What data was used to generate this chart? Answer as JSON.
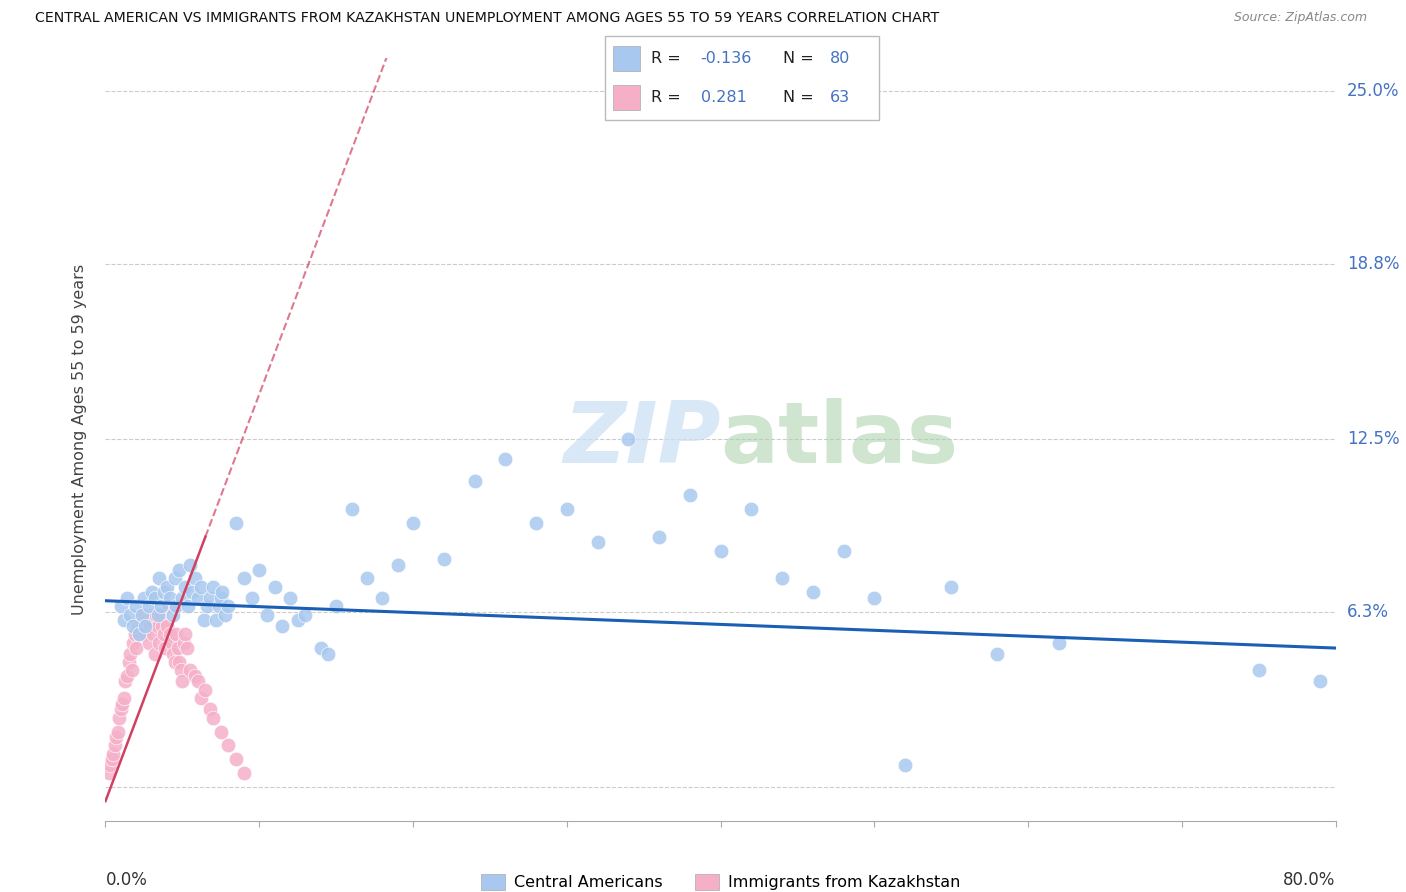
{
  "title": "CENTRAL AMERICAN VS IMMIGRANTS FROM KAZAKHSTAN UNEMPLOYMENT AMONG AGES 55 TO 59 YEARS CORRELATION CHART",
  "source": "Source: ZipAtlas.com",
  "ylabel": "Unemployment Among Ages 55 to 59 years",
  "xmin": 0.0,
  "xmax": 0.8,
  "ymin": -0.012,
  "ymax": 0.262,
  "ytick_positions": [
    0.0,
    0.063,
    0.125,
    0.188,
    0.25
  ],
  "ytick_labels": [
    "",
    "6.3%",
    "12.5%",
    "18.8%",
    "25.0%"
  ],
  "blue_color": "#a8c8ef",
  "pink_color": "#f5b0c8",
  "trend_blue_color": "#1a5fb4",
  "trend_pink_color": "#d04060",
  "watermark_color": "#d8eaf8",
  "title_color": "#111111",
  "right_axis_color": "#4472C4",
  "blue_x": [
    0.01,
    0.012,
    0.014,
    0.016,
    0.018,
    0.02,
    0.022,
    0.024,
    0.025,
    0.026,
    0.028,
    0.03,
    0.032,
    0.034,
    0.035,
    0.036,
    0.038,
    0.04,
    0.042,
    0.044,
    0.045,
    0.046,
    0.048,
    0.05,
    0.052,
    0.054,
    0.055,
    0.056,
    0.058,
    0.06,
    0.062,
    0.064,
    0.066,
    0.068,
    0.07,
    0.072,
    0.074,
    0.075,
    0.076,
    0.078,
    0.08,
    0.085,
    0.09,
    0.095,
    0.1,
    0.105,
    0.11,
    0.115,
    0.12,
    0.125,
    0.13,
    0.14,
    0.145,
    0.15,
    0.16,
    0.17,
    0.18,
    0.19,
    0.2,
    0.22,
    0.24,
    0.26,
    0.28,
    0.3,
    0.32,
    0.34,
    0.36,
    0.38,
    0.4,
    0.42,
    0.44,
    0.46,
    0.48,
    0.5,
    0.52,
    0.55,
    0.58,
    0.62,
    0.75,
    0.79
  ],
  "blue_y": [
    0.065,
    0.06,
    0.068,
    0.062,
    0.058,
    0.065,
    0.055,
    0.062,
    0.068,
    0.058,
    0.065,
    0.07,
    0.068,
    0.062,
    0.075,
    0.065,
    0.07,
    0.072,
    0.068,
    0.062,
    0.075,
    0.065,
    0.078,
    0.068,
    0.072,
    0.065,
    0.08,
    0.07,
    0.075,
    0.068,
    0.072,
    0.06,
    0.065,
    0.068,
    0.072,
    0.06,
    0.065,
    0.068,
    0.07,
    0.062,
    0.065,
    0.095,
    0.075,
    0.068,
    0.078,
    0.062,
    0.072,
    0.058,
    0.068,
    0.06,
    0.062,
    0.05,
    0.048,
    0.065,
    0.1,
    0.075,
    0.068,
    0.08,
    0.095,
    0.082,
    0.11,
    0.118,
    0.095,
    0.1,
    0.088,
    0.125,
    0.09,
    0.105,
    0.085,
    0.1,
    0.075,
    0.07,
    0.085,
    0.068,
    0.008,
    0.072,
    0.048,
    0.052,
    0.042,
    0.038
  ],
  "pink_x": [
    0.002,
    0.003,
    0.004,
    0.005,
    0.006,
    0.007,
    0.008,
    0.009,
    0.01,
    0.011,
    0.012,
    0.013,
    0.014,
    0.015,
    0.016,
    0.017,
    0.018,
    0.019,
    0.02,
    0.021,
    0.022,
    0.023,
    0.024,
    0.025,
    0.026,
    0.027,
    0.028,
    0.029,
    0.03,
    0.031,
    0.032,
    0.033,
    0.034,
    0.035,
    0.036,
    0.037,
    0.038,
    0.039,
    0.04,
    0.041,
    0.042,
    0.043,
    0.044,
    0.045,
    0.046,
    0.047,
    0.048,
    0.049,
    0.05,
    0.051,
    0.052,
    0.053,
    0.055,
    0.058,
    0.06,
    0.062,
    0.065,
    0.068,
    0.07,
    0.075,
    0.08,
    0.085,
    0.09
  ],
  "pink_y": [
    0.005,
    0.008,
    0.01,
    0.012,
    0.015,
    0.018,
    0.02,
    0.025,
    0.028,
    0.03,
    0.032,
    0.038,
    0.04,
    0.045,
    0.048,
    0.042,
    0.052,
    0.055,
    0.05,
    0.058,
    0.055,
    0.06,
    0.058,
    0.062,
    0.055,
    0.06,
    0.052,
    0.058,
    0.062,
    0.055,
    0.048,
    0.062,
    0.058,
    0.052,
    0.062,
    0.058,
    0.055,
    0.05,
    0.058,
    0.065,
    0.055,
    0.052,
    0.048,
    0.045,
    0.055,
    0.05,
    0.045,
    0.042,
    0.038,
    0.052,
    0.055,
    0.05,
    0.042,
    0.04,
    0.038,
    0.032,
    0.035,
    0.028,
    0.025,
    0.02,
    0.015,
    0.01,
    0.005
  ],
  "trend_blue_start_x": 0.0,
  "trend_blue_end_x": 0.8,
  "trend_blue_start_y": 0.067,
  "trend_blue_end_y": 0.05,
  "trend_pink_start_x": 0.0,
  "trend_pink_end_x": 0.065,
  "trend_pink_start_y": -0.005,
  "trend_pink_end_y": 0.09
}
